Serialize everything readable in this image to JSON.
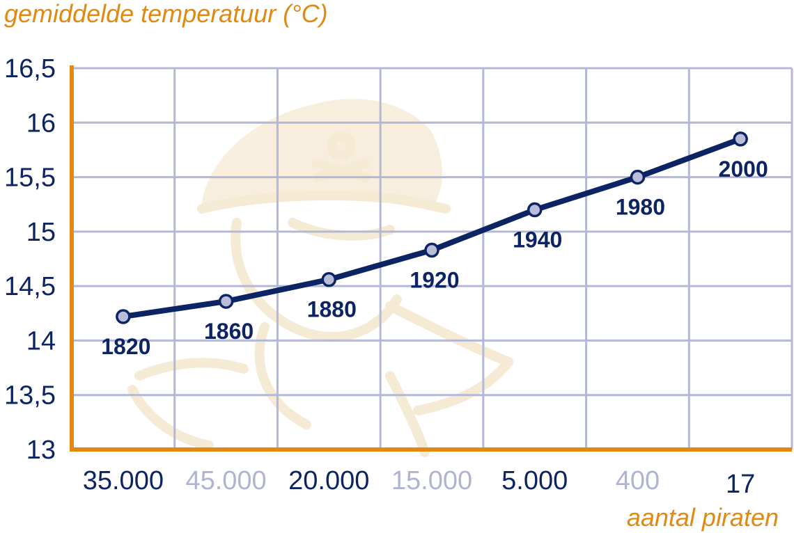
{
  "chart_data": {
    "type": "line",
    "ylabel": "gemiddelde temperatuur (°C)",
    "xlabel": "aantal piraten",
    "categories": [
      "35.000",
      "45.000",
      "20.000",
      "15.000",
      "5.000",
      "400",
      "17"
    ],
    "category_styles": [
      "dark",
      "light",
      "dark",
      "light",
      "dark",
      "light",
      "dark"
    ],
    "point_labels": [
      "1820",
      "1860",
      "1880",
      "1920",
      "1940",
      "1980",
      "2000"
    ],
    "values": [
      14.22,
      14.36,
      14.56,
      14.83,
      15.2,
      15.5,
      15.85
    ],
    "ylim": [
      13,
      16.5
    ],
    "yticks": [
      "13",
      "13,5",
      "14",
      "14,5",
      "15",
      "15,5",
      "16",
      "16,5"
    ],
    "grid": true,
    "watermark": "pirate-illustration",
    "colors": {
      "axis": "#e08a12",
      "series": "#0d2464",
      "marker": "#b9bdd9",
      "grid": "#b4b8d6",
      "tick_dark": "#0d2464",
      "tick_light": "#b0b4d0"
    }
  }
}
